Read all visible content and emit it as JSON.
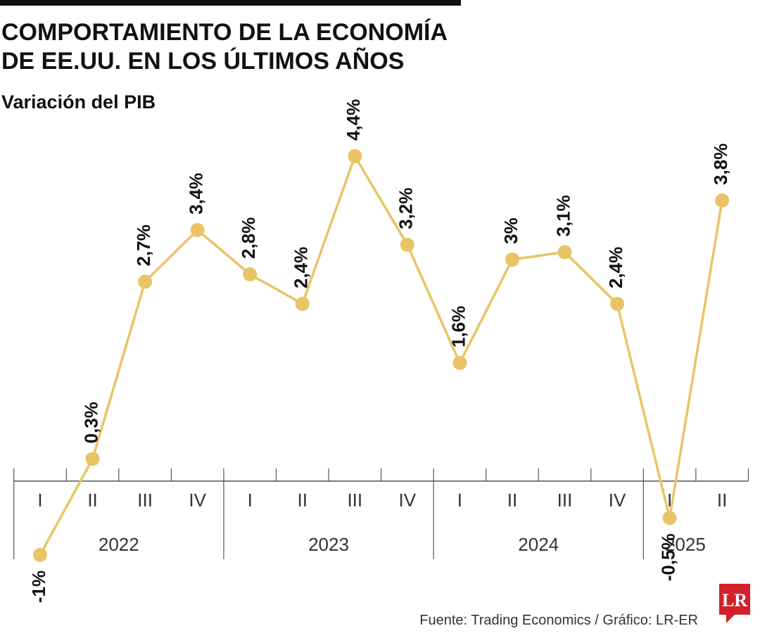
{
  "chart_data": {
    "type": "line",
    "title": [
      "COMPORTAMIENTO DE LA ECONOMÍA",
      "DE EE.UU. EN LOS ÚLTIMOS AÑOS"
    ],
    "subtitle": "Variación del PIB",
    "groups": [
      {
        "label": "2022",
        "categories": [
          "I",
          "II",
          "III",
          "IV"
        ]
      },
      {
        "label": "2023",
        "categories": [
          "I",
          "II",
          "III",
          "IV"
        ]
      },
      {
        "label": "2024",
        "categories": [
          "I",
          "II",
          "III",
          "IV"
        ]
      },
      {
        "label": "2025",
        "categories": [
          "I",
          "II"
        ]
      }
    ],
    "values": [
      -1,
      0.3,
      2.7,
      3.4,
      2.8,
      2.4,
      4.4,
      3.2,
      1.6,
      3,
      3.1,
      2.4,
      -0.5,
      3.8
    ],
    "value_labels": [
      "-1%",
      "0,3%",
      "2,7%",
      "3,4%",
      "2,8%",
      "2,4%",
      "4,4%",
      "3,2%",
      "1,6%",
      "3%",
      "3,1%",
      "2,4%",
      "-0,5%",
      "3,8%"
    ],
    "color": "#e9c465",
    "ylim": [
      -2,
      5.5
    ],
    "source": "Fuente: Trading Economics / Gráfico: LR-ER",
    "logo": "LR"
  }
}
